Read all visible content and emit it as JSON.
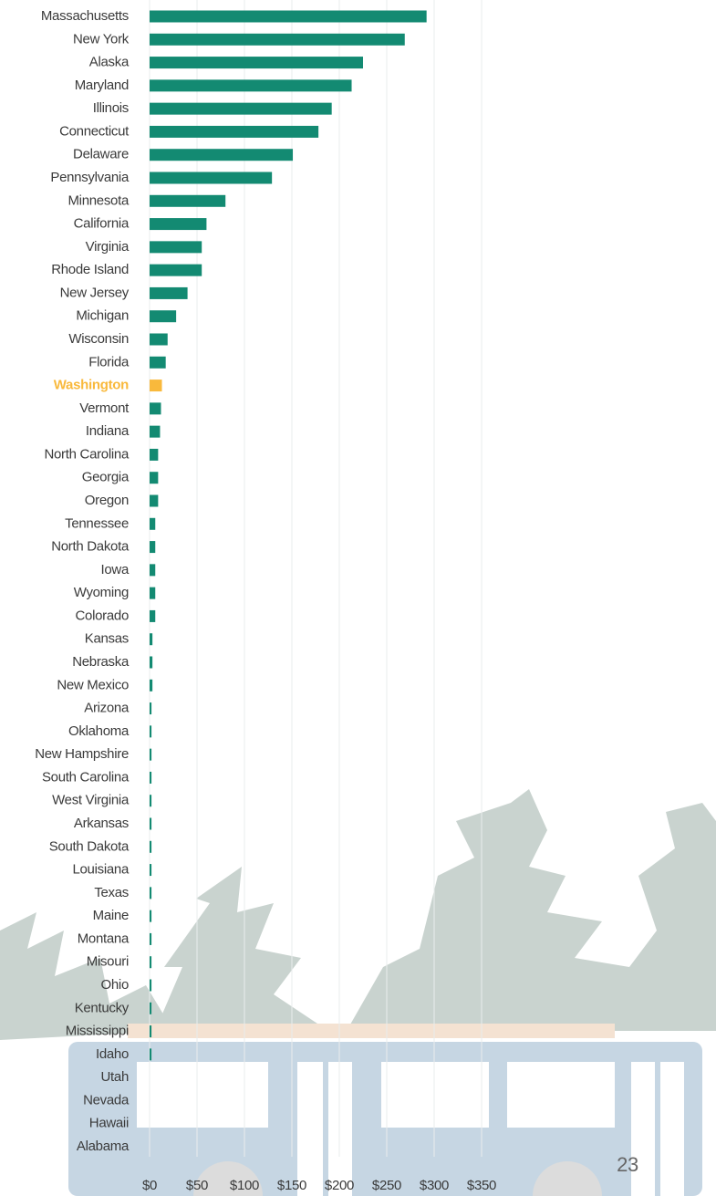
{
  "chart_data": {
    "type": "barh",
    "categories": [
      "Massachusetts",
      "New York",
      "Alaska",
      "Maryland",
      "Illinois",
      "Connecticut",
      "Delaware",
      "Pennsylvania",
      "Minnesota",
      "California",
      "Virginia",
      "Rhode Island",
      "New Jersey",
      "Michigan",
      "Wisconsin",
      "Florida",
      "Washington",
      "Vermont",
      "Indiana",
      "North Carolina",
      "Georgia",
      "Oregon",
      "Tennessee",
      "North Dakota",
      "Iowa",
      "Wyoming",
      "Colorado",
      "Kansas",
      "Nebraska",
      "New Mexico",
      "Arizona",
      "Oklahoma",
      "New Hampshire",
      "South Carolina",
      "West Virginia",
      "Arkansas",
      "South Dakota",
      "Louisiana",
      "Texas",
      "Maine",
      "Montana",
      "Misouri",
      "Ohio",
      "Kentucky",
      "Mississippi",
      "Idaho",
      "Utah",
      "Nevada",
      "Hawaii",
      "Alabama"
    ],
    "values": [
      292,
      269,
      225,
      213,
      192,
      178,
      151,
      129,
      80,
      60,
      55,
      55,
      40,
      28,
      19,
      17,
      13,
      12,
      11,
      9,
      9,
      9,
      6,
      6,
      6,
      6,
      6,
      3,
      3,
      3,
      2,
      2,
      2,
      2,
      2,
      2,
      2,
      2,
      2,
      2,
      2,
      2,
      2,
      2,
      2,
      2,
      0,
      0,
      0,
      0
    ],
    "color": "#138a72",
    "highlight": "Washington",
    "highlight_color": "#f9b93c",
    "xlim": [
      0,
      350
    ],
    "xticks": [
      {
        "value": 0,
        "label": "$0"
      },
      {
        "value": 50,
        "label": "$50"
      },
      {
        "value": 100,
        "label": "$100"
      },
      {
        "value": 150,
        "label": "$150"
      },
      {
        "value": 200,
        "label": "$200"
      },
      {
        "value": 250,
        "label": "$250"
      },
      {
        "value": 300,
        "label": "$300"
      },
      {
        "value": 350,
        "label": "$350"
      }
    ],
    "grid": true
  },
  "page_number": "23"
}
